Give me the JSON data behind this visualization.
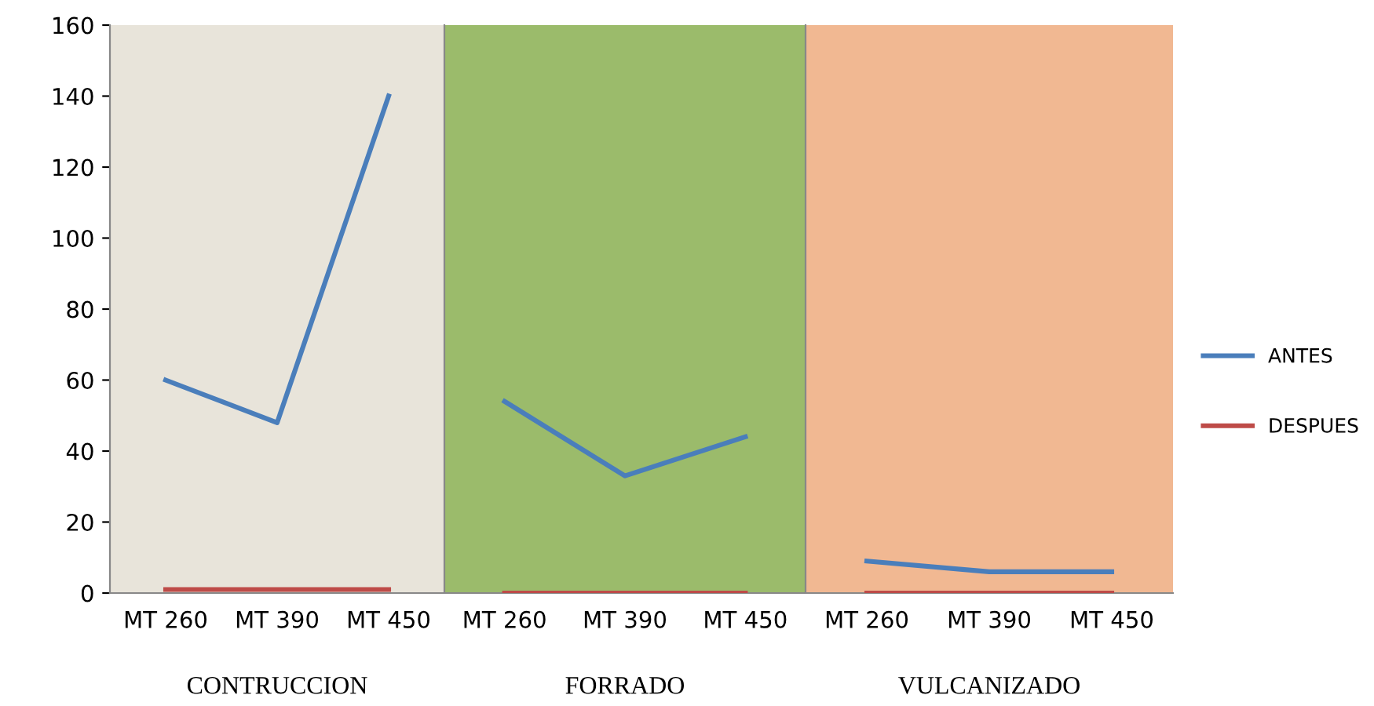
{
  "chart_data": [
    {
      "type": "line",
      "xlabel": "CONTRUCCION",
      "categories": [
        "MT 260",
        "MT 390",
        "MT 450"
      ],
      "ylim": [
        0,
        160
      ],
      "yticks": [
        0,
        20,
        40,
        60,
        80,
        100,
        120,
        140,
        160
      ],
      "legend": "right",
      "bands": [
        {
          "axis": "y",
          "from": 0,
          "to": 160,
          "color": "#e8e4da"
        }
      ],
      "series": [
        {
          "name": "ANTES",
          "color": "#4a7ebb",
          "values": [
            60,
            48,
            140
          ]
        },
        {
          "name": "DESPUES",
          "color": "#be4b48",
          "values": [
            1,
            1,
            1
          ]
        }
      ]
    },
    {
      "type": "line",
      "xlabel": "FORRADO",
      "categories": [
        "MT 260",
        "MT 390",
        "MT 450"
      ],
      "ylim": [
        0,
        160
      ],
      "tick_labels": "x",
      "bands": [
        {
          "axis": "y",
          "from": 0,
          "to": 160,
          "color": "#9bbb6b"
        }
      ],
      "series": [
        {
          "color": "#4a7ebb",
          "values": [
            54,
            33,
            44
          ]
        },
        {
          "color": "#be4b48",
          "values": [
            0,
            0,
            0
          ]
        }
      ]
    },
    {
      "type": "line",
      "xlabel": "VULCANIZADO",
      "categories": [
        "MT 260",
        "MT 390",
        "MT 450"
      ],
      "ylim": [
        0,
        160
      ],
      "tick_labels": "x",
      "bands": [
        {
          "axis": "y",
          "from": 0,
          "to": 160,
          "color": "#f1b892"
        }
      ],
      "series": [
        {
          "color": "#4a7ebb",
          "values": [
            9,
            6,
            6
          ]
        },
        {
          "color": "#be4b48",
          "values": [
            0,
            0,
            0
          ]
        }
      ]
    }
  ]
}
